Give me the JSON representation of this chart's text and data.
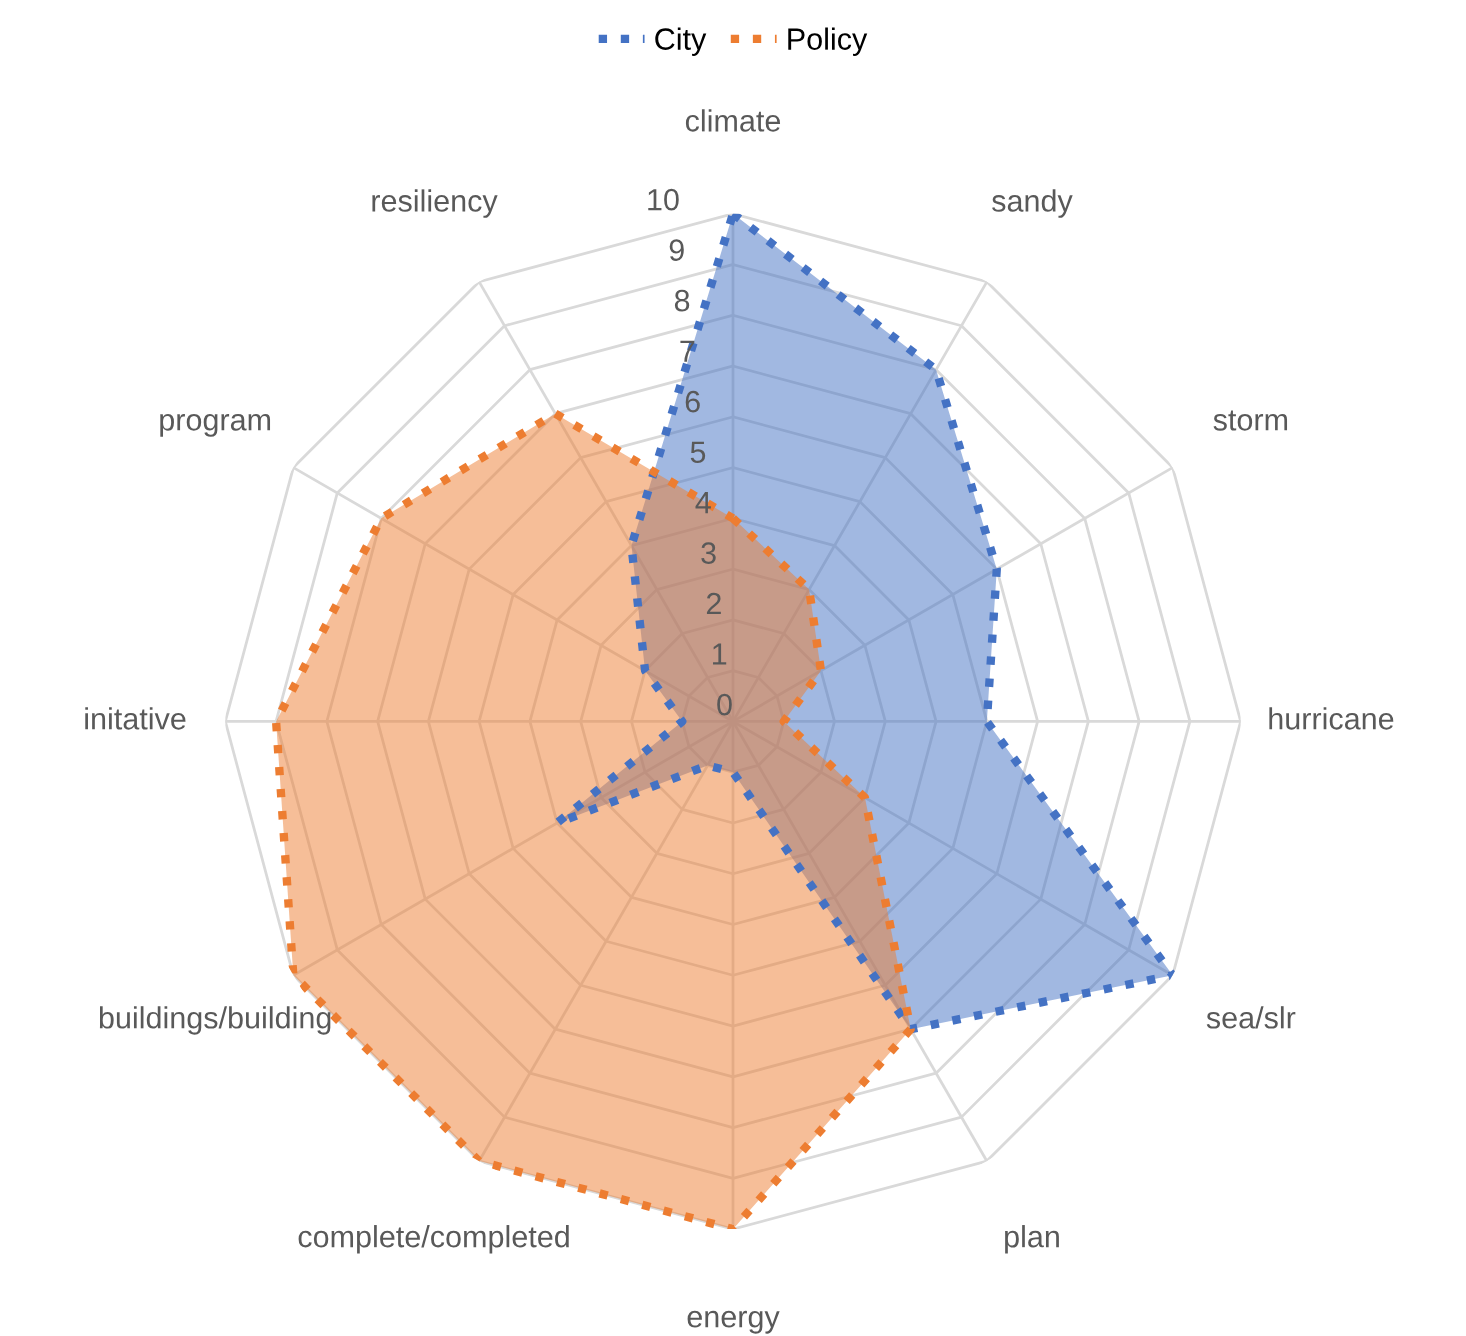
{
  "chart_data": {
    "type": "radar",
    "categories": [
      "climate",
      "sandy",
      "storm",
      "hurricane",
      "sea/slr",
      "plan",
      "energy",
      "complete/completed",
      "buildings/building",
      "initative",
      "program",
      "resiliency"
    ],
    "series": [
      {
        "name": "City",
        "color": "#4472c4",
        "values": [
          10,
          8,
          6,
          5,
          10,
          7,
          1,
          1,
          4,
          1,
          2,
          4
        ]
      },
      {
        "name": "Policy",
        "color": "#ed7d31",
        "values": [
          4,
          3,
          2,
          1,
          3,
          7,
          10,
          10,
          10,
          9,
          8,
          7
        ]
      }
    ],
    "ylim": [
      0,
      10
    ],
    "yticks": [
      0,
      1,
      2,
      3,
      4,
      5,
      6,
      7,
      8,
      9,
      10
    ],
    "grid": true,
    "legend": "top",
    "marker": "none",
    "line_style": "dotted"
  }
}
